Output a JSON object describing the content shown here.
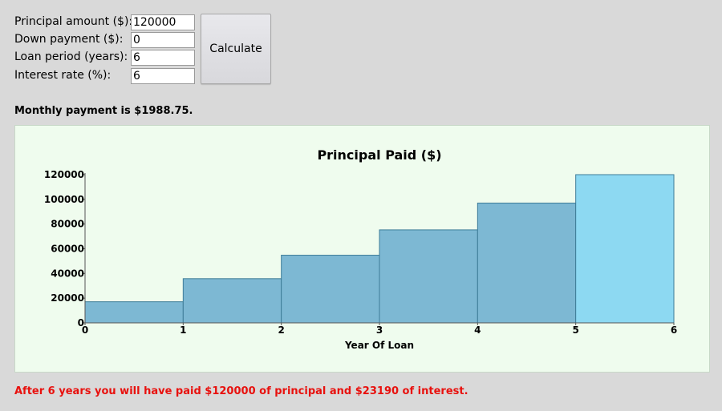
{
  "form": {
    "principal": {
      "label": "Principal amount ($):",
      "value": "120000"
    },
    "down_payment": {
      "label": "Down payment ($):",
      "value": "0"
    },
    "loan_period": {
      "label": "Loan period (years):",
      "value": "6"
    },
    "interest_rate": {
      "label": "Interest rate (%):",
      "value": "6"
    },
    "calculate_label": "Calculate"
  },
  "result": {
    "monthly": "Monthly payment is $1988.75.",
    "summary": "After 6 years you will have paid $120000 of principal and $23190 of interest."
  },
  "colors": {
    "panel_bg": "#effcee",
    "bar": "#7db8d3",
    "bar_last": "#8dd9f2",
    "bar_stroke": "#3e7d98",
    "summary_text": "#e8110e"
  },
  "chart_data": {
    "type": "bar",
    "title": "Principal Paid ($)",
    "xlabel": "Year Of Loan",
    "ylabel": "",
    "x_ticks": [
      "0",
      "1",
      "2",
      "3",
      "4",
      "5",
      "6"
    ],
    "y_ticks": [
      "0",
      "20000",
      "40000",
      "60000",
      "80000",
      "100000",
      "120000"
    ],
    "xlim": [
      0,
      6
    ],
    "ylim": [
      0,
      120000
    ],
    "bins": [
      [
        0,
        1
      ],
      [
        1,
        2
      ],
      [
        2,
        3
      ],
      [
        3,
        4
      ],
      [
        4,
        5
      ],
      [
        5,
        6
      ]
    ],
    "values": [
      17100,
      35800,
      54800,
      75300,
      97000,
      120000
    ],
    "grid": false,
    "legend": "none"
  }
}
